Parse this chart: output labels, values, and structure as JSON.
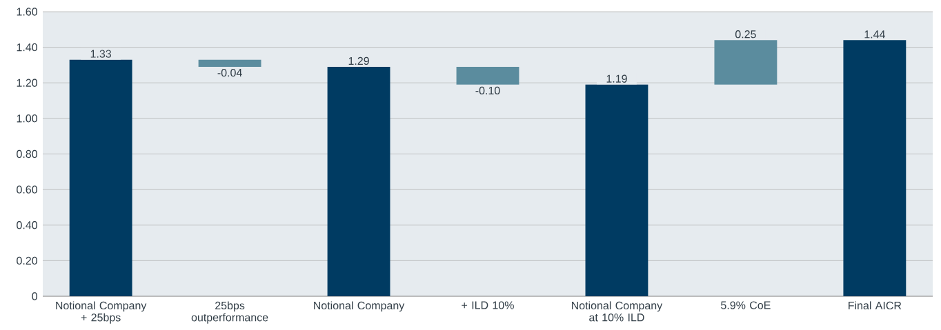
{
  "chart_data": {
    "type": "bar",
    "categories": [
      "Notional Company + 25bps",
      "25bps outperformance",
      "Notional Company",
      "+ ILD 10%",
      "Notional Company at 10% ILD",
      "5.9% CoE",
      "Final AICR"
    ],
    "values": [
      1.33,
      -0.04,
      1.29,
      -0.1,
      1.19,
      0.25,
      1.44
    ],
    "base": [
      0,
      1.33,
      0,
      1.29,
      0,
      1.19,
      0
    ],
    "colors": [
      "#003b62",
      "#5b8c9e",
      "#003b62",
      "#5b8c9e",
      "#003b62",
      "#5b8c9e",
      "#003b62"
    ],
    "value_labels": [
      "1.33",
      "-0.04",
      "1.29",
      "-0.10",
      "1.19",
      "0.25",
      "1.44"
    ],
    "ylim": [
      0,
      1.6
    ],
    "yticks": [
      0,
      {
        "value": 0.2,
        "label": "0.20"
      },
      {
        "value": 0.4,
        "label": "0.40"
      },
      {
        "value": 0.6,
        "label": "0.60"
      },
      {
        "value": 0.8,
        "label": "0.80"
      },
      {
        "value": 1.0,
        "label": "1.00"
      },
      {
        "value": 1.2,
        "label": "1.20"
      },
      {
        "value": 1.4,
        "label": "1.40"
      },
      {
        "value": 1.6,
        "label": "1.60"
      }
    ],
    "grid": "y"
  }
}
